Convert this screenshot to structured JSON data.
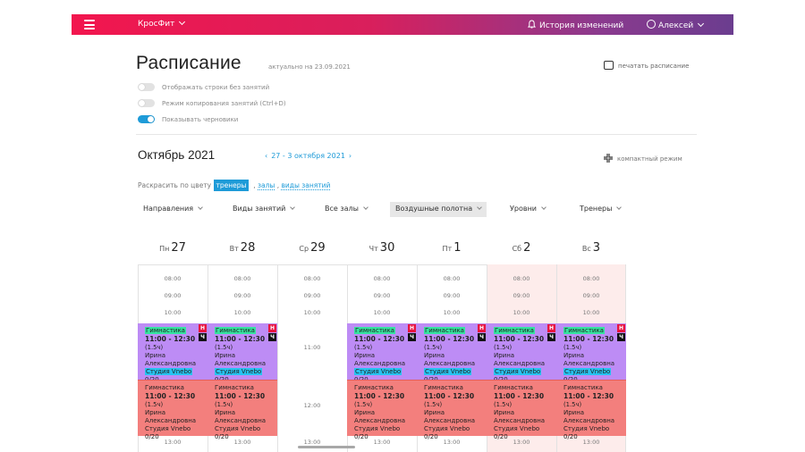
{
  "topbar": {
    "menu_icon": "hamburger-icon",
    "brand": "КросФит",
    "history": "История изменений",
    "user": "Алексей"
  },
  "header": {
    "title": "Расписание",
    "actual": "актуально на 23.09.2021",
    "print": "печатать расписание"
  },
  "toggles": [
    {
      "label": "Отображать строки без занятий",
      "on": false
    },
    {
      "label": "Режим копирования занятий (Ctrl+D)",
      "on": false
    },
    {
      "label": "Показывать черновики",
      "on": true
    }
  ],
  "calendar": {
    "month": "Октябрь 2021",
    "range": "27 - 3 октября 2021",
    "compact": "компактный режим"
  },
  "colorby": {
    "label": "Раскрасить по цвету",
    "selected": "тренеры",
    "links": [
      "залы",
      "виды занятий"
    ]
  },
  "filters": [
    "Направления",
    "Виды занятий",
    "Все залы",
    "Воздушные полотна",
    "Уровни",
    "Тренеры"
  ],
  "days": [
    {
      "name": "Пн",
      "date": "27"
    },
    {
      "name": "Вт",
      "date": "28"
    },
    {
      "name": "Ср",
      "date": "29"
    },
    {
      "name": "Чт",
      "date": "30"
    },
    {
      "name": "Пт",
      "date": "1"
    },
    {
      "name": "Сб",
      "date": "2"
    },
    {
      "name": "Вс",
      "date": "3"
    }
  ],
  "times": [
    "08:00",
    "09:00",
    "10:00",
    "11:00",
    "12:00",
    "13:00"
  ],
  "card_purple": {
    "name": "Гимнастика",
    "time": "11:00 - 12:30",
    "duration": "(1.5ч)",
    "trainer_first": "Ирина",
    "trainer_last": "Александровна",
    "studio": "Студия Vnebo",
    "count": "0/20",
    "badge_n": "Н",
    "badge_c": "Ч"
  },
  "card_red": {
    "name": "Гимнастика",
    "time": "11:00 - 12:30",
    "duration": "(1.5ч)",
    "trainer_first": "Ирина",
    "trainer_last": "Александровна",
    "studio": "Студия Vnebo",
    "count": "0/20"
  },
  "colors": {
    "topbar_start": "#f2164e",
    "topbar_end": "#6b3d8f",
    "accent": "#1e9bd8",
    "card_purple": "#bd8cf5",
    "card_red": "#f37f7d",
    "weekend_bg": "#fdeceb"
  }
}
